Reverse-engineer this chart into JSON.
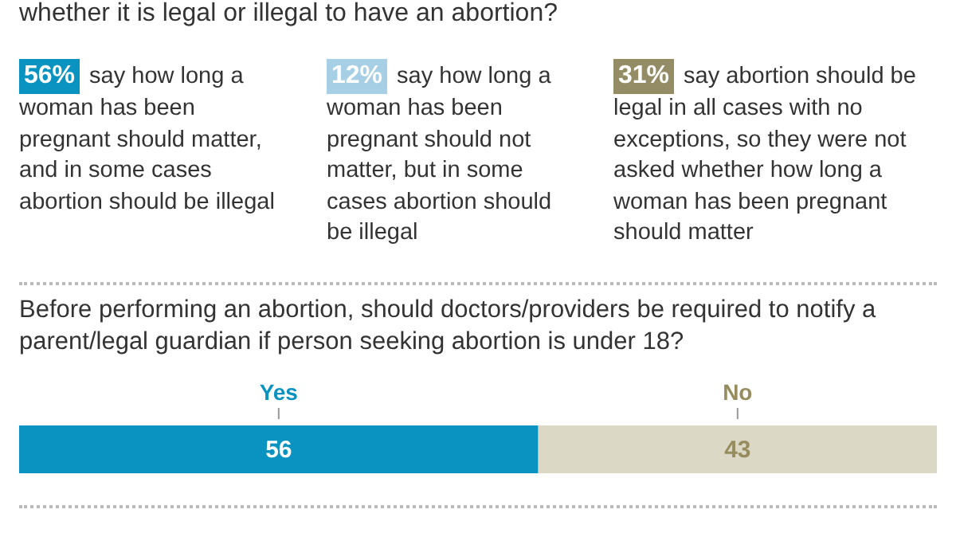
{
  "chart_data": [
    {
      "type": "other",
      "title": "whether it is legal or illegal to have an abortion?",
      "categories": [
        "say how long a woman has been pregnant should matter, and in some cases abortion should be illegal",
        "say how long a woman has been pregnant should not matter, but in some cases abortion should be illegal",
        "say abortion should be legal in all cases with no exceptions, so they were not asked whether how long a woman has been pregnant should matter"
      ],
      "values": [
        56,
        12,
        31
      ],
      "value_labels": [
        "56%",
        "12%",
        "31%"
      ],
      "colors": [
        "#0a93c1",
        "#a6cfe6",
        "#948c64"
      ]
    },
    {
      "type": "bar",
      "orientation": "horizontal",
      "stacked": true,
      "title": "Before performing an abortion, should doctors/providers be required to notify a parent/legal guardian if person seeking abortion is under 18?",
      "categories": [
        null
      ],
      "series": [
        {
          "name": "Yes",
          "color": "#0a93c1",
          "values": [
            56
          ]
        },
        {
          "name": "No",
          "color": "#dcd8c6",
          "values": [
            43
          ]
        }
      ],
      "data_labels": true
    }
  ]
}
